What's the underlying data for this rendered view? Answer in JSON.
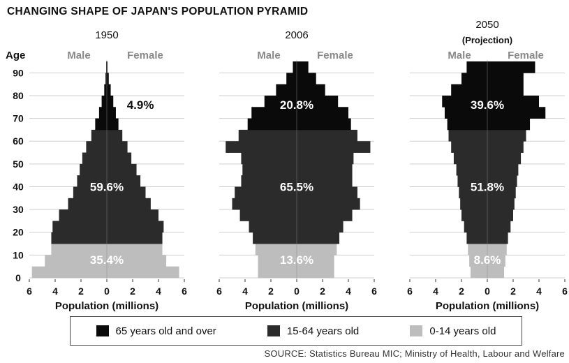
{
  "title": "CHANGING SHAPE OF JAPAN'S POPULATION PYRAMID",
  "age_label": "Age",
  "male_label": "Male",
  "female_label": "Female",
  "xlabel": "Population (millions)",
  "source": "SOURCE: Statistics Bureau MIC; Ministry of Health, Labour and Welfare",
  "colors": {
    "old": "#0a0a0a",
    "working": "#2b2b2b",
    "young": "#bdbdbd",
    "grid": "#cfcfcf"
  },
  "chart_data": [
    {
      "type": "bar",
      "title": "1950",
      "subtitle": "",
      "x_ticks": [
        "6",
        "4",
        "2",
        "0",
        "2",
        "4",
        "6"
      ],
      "x_range": [
        -6,
        6
      ],
      "y_ticks": [
        "0",
        "10",
        "20",
        "30",
        "40",
        "50",
        "60",
        "70",
        "80",
        "90"
      ],
      "y_range": [
        0,
        95
      ],
      "age_bands": [
        [
          0,
          5
        ],
        [
          5,
          10
        ],
        [
          10,
          15
        ],
        [
          15,
          20
        ],
        [
          20,
          25
        ],
        [
          25,
          30
        ],
        [
          30,
          35
        ],
        [
          35,
          40
        ],
        [
          40,
          45
        ],
        [
          45,
          50
        ],
        [
          50,
          55
        ],
        [
          55,
          60
        ],
        [
          60,
          65
        ],
        [
          65,
          70
        ],
        [
          70,
          75
        ],
        [
          75,
          80
        ],
        [
          80,
          85
        ],
        [
          85,
          90
        ],
        [
          90,
          95
        ]
      ],
      "male": [
        5.8,
        4.8,
        4.3,
        4.3,
        4.2,
        3.7,
        3.0,
        2.6,
        2.3,
        2.1,
        1.9,
        1.6,
        1.2,
        0.9,
        0.6,
        0.4,
        0.2,
        0.1,
        0.05
      ],
      "female": [
        5.6,
        4.6,
        4.3,
        4.3,
        4.4,
        4.0,
        3.4,
        3.0,
        2.6,
        2.3,
        1.9,
        1.6,
        1.2,
        0.9,
        0.7,
        0.5,
        0.3,
        0.15,
        0.05
      ],
      "shares": [
        {
          "label": "4.9%",
          "group": "old",
          "age": 76,
          "x": 2.6
        },
        {
          "label": "59.6%",
          "group": "working",
          "age": 40,
          "x": 0
        },
        {
          "label": "35.4%",
          "group": "young",
          "age": 8,
          "x": 0
        }
      ]
    },
    {
      "type": "bar",
      "title": "2006",
      "subtitle": "",
      "x_ticks": [
        "6",
        "4",
        "2",
        "0",
        "2",
        "4",
        "6"
      ],
      "x_range": [
        -6,
        6
      ],
      "y_ticks": [],
      "y_range": [
        0,
        95
      ],
      "age_bands": [
        [
          0,
          5
        ],
        [
          5,
          10
        ],
        [
          10,
          15
        ],
        [
          15,
          20
        ],
        [
          20,
          25
        ],
        [
          25,
          30
        ],
        [
          30,
          35
        ],
        [
          35,
          40
        ],
        [
          40,
          45
        ],
        [
          45,
          50
        ],
        [
          50,
          55
        ],
        [
          55,
          60
        ],
        [
          60,
          65
        ],
        [
          65,
          70
        ],
        [
          70,
          75
        ],
        [
          75,
          80
        ],
        [
          80,
          85
        ],
        [
          85,
          90
        ],
        [
          90,
          95
        ]
      ],
      "male": [
        3.0,
        3.0,
        3.2,
        3.4,
        3.7,
        4.4,
        5.0,
        4.8,
        4.3,
        4.2,
        4.3,
        5.5,
        4.5,
        3.8,
        3.5,
        2.5,
        1.6,
        0.8,
        0.3
      ],
      "female": [
        2.9,
        2.9,
        3.1,
        3.3,
        3.6,
        4.3,
        4.9,
        4.7,
        4.3,
        4.3,
        4.4,
        5.7,
        4.7,
        4.2,
        4.0,
        3.2,
        2.2,
        1.5,
        0.9
      ],
      "shares": [
        {
          "label": "20.8%",
          "group": "old",
          "age": 76,
          "x": 0
        },
        {
          "label": "65.5%",
          "group": "working",
          "age": 40,
          "x": 0
        },
        {
          "label": "13.6%",
          "group": "young",
          "age": 8,
          "x": 0
        }
      ]
    },
    {
      "type": "bar",
      "title": "2050",
      "subtitle": "(Projection)",
      "x_ticks": [
        "6",
        "4",
        "2",
        "0",
        "2",
        "4",
        "6"
      ],
      "x_range": [
        -6,
        6
      ],
      "y_ticks": [],
      "y_range": [
        0,
        95
      ],
      "age_bands": [
        [
          0,
          5
        ],
        [
          5,
          10
        ],
        [
          10,
          15
        ],
        [
          15,
          20
        ],
        [
          20,
          25
        ],
        [
          25,
          30
        ],
        [
          30,
          35
        ],
        [
          35,
          40
        ],
        [
          40,
          45
        ],
        [
          45,
          50
        ],
        [
          50,
          55
        ],
        [
          55,
          60
        ],
        [
          60,
          65
        ],
        [
          65,
          70
        ],
        [
          70,
          75
        ],
        [
          75,
          80
        ],
        [
          80,
          85
        ],
        [
          85,
          90
        ],
        [
          90,
          95
        ]
      ],
      "male": [
        1.3,
        1.4,
        1.5,
        1.6,
        1.8,
        2.0,
        2.1,
        2.2,
        2.3,
        2.4,
        2.6,
        2.8,
        3.0,
        3.1,
        3.3,
        3.5,
        2.8,
        2.0,
        1.6
      ],
      "female": [
        1.3,
        1.4,
        1.5,
        1.6,
        1.8,
        2.0,
        2.1,
        2.2,
        2.3,
        2.4,
        2.6,
        2.8,
        3.0,
        3.3,
        4.5,
        4.0,
        2.8,
        2.8,
        3.7
      ],
      "shares": [
        {
          "label": "39.6%",
          "group": "old",
          "age": 76,
          "x": 0
        },
        {
          "label": "51.8%",
          "group": "working",
          "age": 40,
          "x": 0
        },
        {
          "label": "8.6%",
          "group": "young",
          "age": 8,
          "x": 0
        }
      ]
    }
  ],
  "legend": [
    {
      "group": "old",
      "label": "65 years old and over"
    },
    {
      "group": "working",
      "label": "15-64 years old"
    },
    {
      "group": "young",
      "label": "0-14 years old"
    }
  ]
}
